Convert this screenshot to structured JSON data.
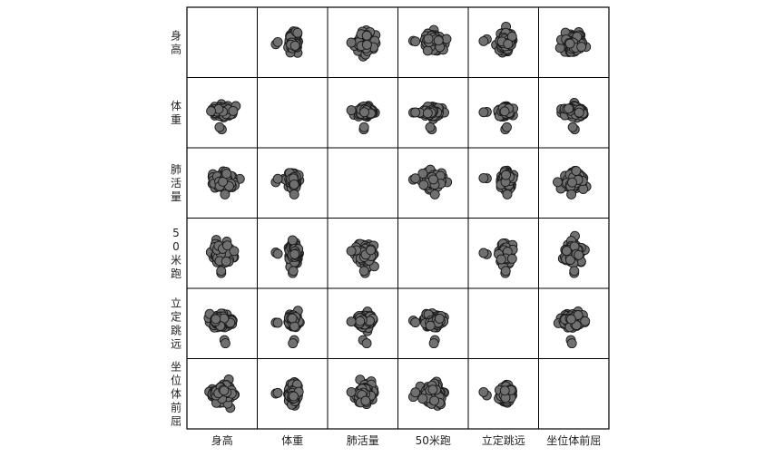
{
  "chart_data": {
    "type": "scatter",
    "variables": [
      "身高",
      "体重",
      "肺活量",
      "50米跑",
      "立定跳远",
      "坐位体前屈"
    ],
    "row_labels": [
      "身高",
      "体重",
      "肺活量",
      "50米跑",
      "立定跳远",
      "坐位体前屈"
    ],
    "col_labels": [
      "身高",
      "体重",
      "肺活量",
      "50米跑",
      "立定跳远",
      "坐位体前屈"
    ],
    "diagonal": "empty",
    "grid": false,
    "point_color": "#707070",
    "point_edge_color": "#1a1a1a",
    "clusters": {
      "身高": {
        "center": 0.5,
        "spread": 0.22,
        "outliers": []
      },
      "体重": {
        "center": 0.52,
        "spread": 0.1,
        "outliers": [
          0.18,
          0.22
        ]
      },
      "肺活量": {
        "center": 0.55,
        "spread": 0.17,
        "outliers": [
          0.28
        ]
      },
      "50米跑": {
        "center": 0.5,
        "spread": 0.2,
        "outliers": [
          0.12,
          0.16
        ]
      },
      "立定跳远": {
        "center": 0.55,
        "spread": 0.13,
        "outliers": [
          0.18,
          0.12
        ]
      },
      "坐位体前屈": {
        "center": 0.5,
        "spread": 0.2,
        "outliers": []
      }
    }
  }
}
